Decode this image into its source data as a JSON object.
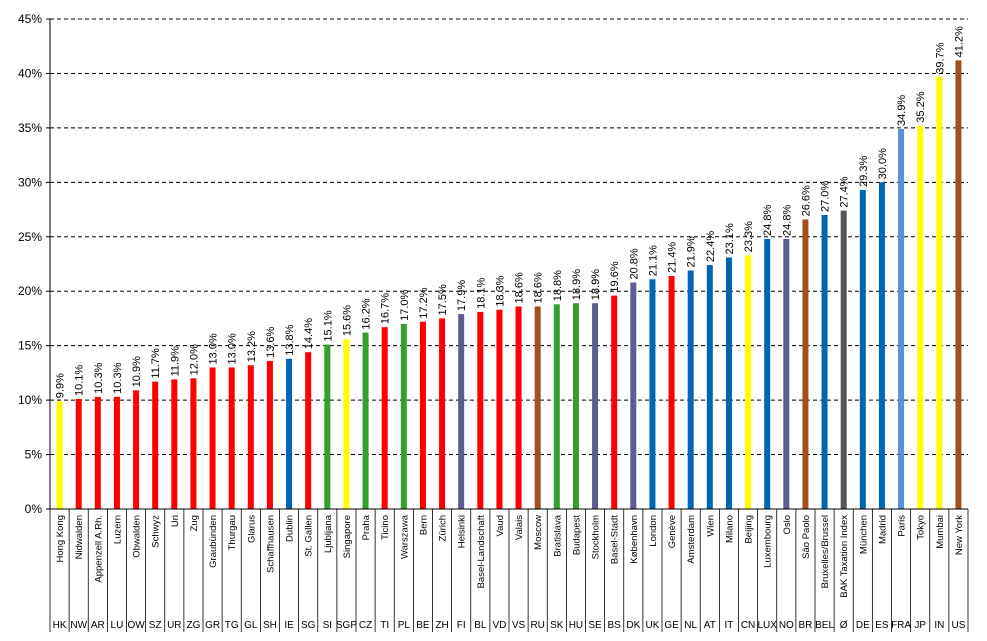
{
  "chart_data": {
    "type": "bar",
    "yaxis": {
      "min": 0,
      "max": 45,
      "step": 5,
      "tick_labels": [
        "0%",
        "5%",
        "10%",
        "15%",
        "20%",
        "25%",
        "30%",
        "35%",
        "40%",
        "45%"
      ],
      "gridlines": true,
      "grid_style": "dashed"
    },
    "colors": {
      "red": "#ff0000",
      "yellow": "#ffff00",
      "blue": "#0066b3",
      "green": "#33a02c",
      "brown": "#a0521e",
      "purple": "#5c5c92",
      "lightblue": "#5b8fd6",
      "gray": "#555555"
    },
    "bars": [
      {
        "name": "Hong Kong",
        "code": "HK",
        "value": 9.9,
        "label": "9.9%",
        "color": "yellow"
      },
      {
        "name": "Nidwalden",
        "code": "NW",
        "value": 10.1,
        "label": "10.1%",
        "color": "red"
      },
      {
        "name": "Appenzell A.Rh.",
        "code": "AR",
        "value": 10.3,
        "label": "10.3%",
        "color": "red"
      },
      {
        "name": "Luzern",
        "code": "LU",
        "value": 10.3,
        "label": "10.3%",
        "color": "red"
      },
      {
        "name": "Obwalden",
        "code": "OW",
        "value": 10.9,
        "label": "10.9%",
        "color": "red"
      },
      {
        "name": "Schwyz",
        "code": "SZ",
        "value": 11.7,
        "label": "11.7%",
        "color": "red"
      },
      {
        "name": "Uri",
        "code": "UR",
        "value": 11.9,
        "label": "11.9%",
        "color": "red"
      },
      {
        "name": "Zug",
        "code": "ZG",
        "value": 12.0,
        "label": "12.0%",
        "color": "red"
      },
      {
        "name": "Graubünden",
        "code": "GR",
        "value": 13.0,
        "label": "13.0%",
        "color": "red"
      },
      {
        "name": "Thurgau",
        "code": "TG",
        "value": 13.0,
        "label": "13.0%",
        "color": "red"
      },
      {
        "name": "Glarus",
        "code": "GL",
        "value": 13.2,
        "label": "13.2%",
        "color": "red"
      },
      {
        "name": "Schaffhausen",
        "code": "SH",
        "value": 13.6,
        "label": "13.6%",
        "color": "red"
      },
      {
        "name": "Dublin",
        "code": "IE",
        "value": 13.8,
        "label": "13.8%",
        "color": "blue"
      },
      {
        "name": "St. Gallen",
        "code": "SG",
        "value": 14.4,
        "label": "14.4%",
        "color": "red"
      },
      {
        "name": "Ljubljana",
        "code": "SI",
        "value": 15.1,
        "label": "15.1%",
        "color": "green"
      },
      {
        "name": "Singapore",
        "code": "SGP",
        "value": 15.6,
        "label": "15.6%",
        "color": "yellow"
      },
      {
        "name": "Praha",
        "code": "CZ",
        "value": 16.2,
        "label": "16.2%",
        "color": "green"
      },
      {
        "name": "Ticino",
        "code": "TI",
        "value": 16.7,
        "label": "16.7%",
        "color": "red"
      },
      {
        "name": "Warszawa",
        "code": "PL",
        "value": 17.0,
        "label": "17.0%",
        "color": "green"
      },
      {
        "name": "Bern",
        "code": "BE",
        "value": 17.2,
        "label": "17.2%",
        "color": "red"
      },
      {
        "name": "Zürich",
        "code": "ZH",
        "value": 17.5,
        "label": "17.5%",
        "color": "red"
      },
      {
        "name": "Helsinki",
        "code": "FI",
        "value": 17.9,
        "label": "17.9%",
        "color": "purple"
      },
      {
        "name": "Basel-Landschaft",
        "code": "BL",
        "value": 18.1,
        "label": "18.1%",
        "color": "red"
      },
      {
        "name": "Vaud",
        "code": "VD",
        "value": 18.3,
        "label": "18.3%",
        "color": "red"
      },
      {
        "name": "Valais",
        "code": "VS",
        "value": 18.6,
        "label": "18.6%",
        "color": "red"
      },
      {
        "name": "Moscow",
        "code": "RU",
        "value": 18.6,
        "label": "18.6%",
        "color": "brown"
      },
      {
        "name": "Bratislava",
        "code": "SK",
        "value": 18.8,
        "label": "18.8%",
        "color": "green"
      },
      {
        "name": "Budapest",
        "code": "HU",
        "value": 18.9,
        "label": "18.9%",
        "color": "green"
      },
      {
        "name": "Stockholm",
        "code": "SE",
        "value": 18.9,
        "label": "18.9%",
        "color": "purple"
      },
      {
        "name": "Basel-Stadt",
        "code": "BS",
        "value": 19.6,
        "label": "19.6%",
        "color": "red"
      },
      {
        "name": "København",
        "code": "DK",
        "value": 20.8,
        "label": "20.8%",
        "color": "purple"
      },
      {
        "name": "London",
        "code": "UK",
        "value": 21.1,
        "label": "21.1%",
        "color": "blue"
      },
      {
        "name": "Genève",
        "code": "GE",
        "value": 21.4,
        "label": "21.4%",
        "color": "red"
      },
      {
        "name": "Amsterdam",
        "code": "NL",
        "value": 21.9,
        "label": "21.9%",
        "color": "blue"
      },
      {
        "name": "Wien",
        "code": "AT",
        "value": 22.4,
        "label": "22.4%",
        "color": "blue"
      },
      {
        "name": "Milano",
        "code": "IT",
        "value": 23.1,
        "label": "23.1%",
        "color": "blue"
      },
      {
        "name": "Beijing",
        "code": "CN",
        "value": 23.3,
        "label": "23.3%",
        "color": "yellow"
      },
      {
        "name": "Luxembourg",
        "code": "LUX",
        "value": 24.8,
        "label": "24.8%",
        "color": "blue"
      },
      {
        "name": "Oslo",
        "code": "NO",
        "value": 24.8,
        "label": "24.8%",
        "color": "purple"
      },
      {
        "name": "Sâo Paolo",
        "code": "BR",
        "value": 26.6,
        "label": "26.6%",
        "color": "brown"
      },
      {
        "name": "Bruxelles/Brussel",
        "code": "BEL",
        "value": 27.0,
        "label": "27.0%",
        "color": "blue"
      },
      {
        "name": "BAK Taxation Index",
        "code": "Ø",
        "value": 27.4,
        "label": "27.4%",
        "color": "gray"
      },
      {
        "name": "München",
        "code": "DE",
        "value": 29.3,
        "label": "29.3%",
        "color": "blue"
      },
      {
        "name": "Madrid",
        "code": "ES",
        "value": 30.0,
        "label": "30.0%",
        "color": "blue"
      },
      {
        "name": "Paris",
        "code": "FRA",
        "value": 34.9,
        "label": "34.9%",
        "color": "lightblue"
      },
      {
        "name": "Tokyo",
        "code": "JP",
        "value": 35.2,
        "label": "35.2%",
        "color": "yellow"
      },
      {
        "name": "Mumbai",
        "code": "IN",
        "value": 39.7,
        "label": "39.7%",
        "color": "yellow"
      },
      {
        "name": "New York",
        "code": "US",
        "value": 41.2,
        "label": "41.2%",
        "color": "brown"
      }
    ]
  }
}
